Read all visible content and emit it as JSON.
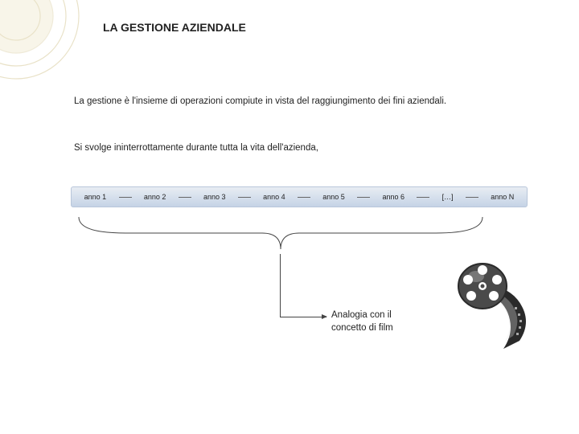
{
  "title": "LA GESTIONE AZIENDALE",
  "para1": "La gestione è l'insieme di operazioni compiute in vista del raggiungimento dei fini aziendali.",
  "para2": "Si svolge ininterrottamente durante tutta la vita dell'azienda,",
  "timeline": {
    "background_gradient": [
      "#e8edf3",
      "#c5d3e6"
    ],
    "border_color": "#b8c6da",
    "items": [
      "anno 1",
      "anno 2",
      "anno 3",
      "anno 4",
      "anno 5",
      "anno 6",
      "[…]",
      "anno N"
    ],
    "item_fontsize": 9,
    "separator_color": "#666666"
  },
  "analogy_text": "Analogia con il concetto di film",
  "bg_decoration": {
    "circle_stroke": "#e9e2c8",
    "circle_fill": "#f6f2e1"
  },
  "film_illustration": {
    "reel_color": "#4a4a4a",
    "strip_color": "#2a2a2a",
    "highlight": "#e8e8e8"
  },
  "text_color": "#222222",
  "background_color": "#ffffff"
}
